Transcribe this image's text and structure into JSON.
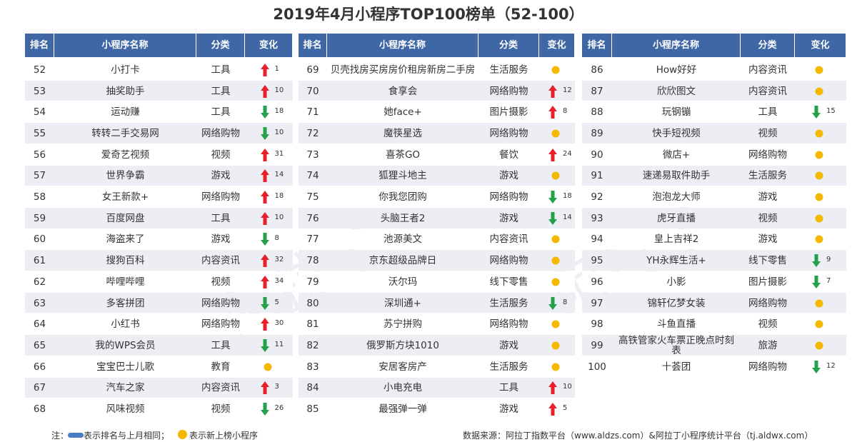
{
  "title": "2019年4月小程序TOP100榜单（52-100）",
  "headers": [
    "排名",
    "小程序名称",
    "分类",
    "变化"
  ],
  "watermark": "阿拉丁",
  "tables": [
    {
      "rows": [
        {
          "rank": 52,
          "name": "小打卡",
          "category": "工具",
          "trend": "up",
          "change": 1
        },
        {
          "rank": 53,
          "name": "抽奖助手",
          "category": "工具",
          "trend": "up",
          "change": 10
        },
        {
          "rank": 54,
          "name": "运动赚",
          "category": "工具",
          "trend": "down",
          "change": 18
        },
        {
          "rank": 55,
          "name": "转转二手交易网",
          "category": "网络购物",
          "trend": "down",
          "change": 10
        },
        {
          "rank": 56,
          "name": "爱奇艺视频",
          "category": "视频",
          "trend": "up",
          "change": 31
        },
        {
          "rank": 57,
          "name": "世界争霸",
          "category": "游戏",
          "trend": "up",
          "change": 14
        },
        {
          "rank": 58,
          "name": "女王新款+",
          "category": "网络购物",
          "trend": "up",
          "change": 18
        },
        {
          "rank": 59,
          "name": "百度网盘",
          "category": "工具",
          "trend": "up",
          "change": 10
        },
        {
          "rank": 60,
          "name": "海盗来了",
          "category": "游戏",
          "trend": "down",
          "change": 8
        },
        {
          "rank": 61,
          "name": "搜狗百科",
          "category": "内容资讯",
          "trend": "up",
          "change": 32
        },
        {
          "rank": 62,
          "name": "哔哩哔哩",
          "category": "视频",
          "trend": "up",
          "change": 34
        },
        {
          "rank": 63,
          "name": "多客拼团",
          "category": "网络购物",
          "trend": "down",
          "change": 5
        },
        {
          "rank": 64,
          "name": "小红书",
          "category": "网络购物",
          "trend": "up",
          "change": 30
        },
        {
          "rank": 65,
          "name": "我的WPS会员",
          "category": "工具",
          "trend": "down",
          "change": 11
        },
        {
          "rank": 66,
          "name": "宝宝巴士儿歌",
          "category": "教育",
          "trend": "new"
        },
        {
          "rank": 67,
          "name": "汽车之家",
          "category": "内容资讯",
          "trend": "up",
          "change": 3
        },
        {
          "rank": 68,
          "name": "风味视频",
          "category": "视频",
          "trend": "down",
          "change": 26
        }
      ]
    },
    {
      "rows": [
        {
          "rank": 69,
          "name": "贝壳找房买房房价租房新房二手房",
          "category": "生活服务",
          "trend": "new"
        },
        {
          "rank": 70,
          "name": "食享会",
          "category": "网络购物",
          "trend": "up",
          "change": 12
        },
        {
          "rank": 71,
          "name": "她face+",
          "category": "图片摄影",
          "trend": "up",
          "change": 8
        },
        {
          "rank": 72,
          "name": "魔筷星选",
          "category": "网络购物",
          "trend": "new"
        },
        {
          "rank": 73,
          "name": "喜茶GO",
          "category": "餐饮",
          "trend": "up",
          "change": 24
        },
        {
          "rank": 74,
          "name": "狐狸斗地主",
          "category": "游戏",
          "trend": "new"
        },
        {
          "rank": 75,
          "name": "你我您团购",
          "category": "网络购物",
          "trend": "down",
          "change": 18
        },
        {
          "rank": 76,
          "name": "头脑王者2",
          "category": "游戏",
          "trend": "down",
          "change": 14
        },
        {
          "rank": 77,
          "name": "池源美文",
          "category": "内容资讯",
          "trend": "new"
        },
        {
          "rank": 78,
          "name": "京东超级品牌日",
          "category": "网络购物",
          "trend": "new"
        },
        {
          "rank": 79,
          "name": "沃尔玛",
          "category": "线下零售",
          "trend": "new"
        },
        {
          "rank": 80,
          "name": "深圳通+",
          "category": "生活服务",
          "trend": "down",
          "change": 8
        },
        {
          "rank": 81,
          "name": "苏宁拼购",
          "category": "网络购物",
          "trend": "new"
        },
        {
          "rank": 82,
          "name": "俄罗斯方块1010",
          "category": "游戏",
          "trend": "new"
        },
        {
          "rank": 83,
          "name": "安居客房产",
          "category": "生活服务",
          "trend": "new"
        },
        {
          "rank": 84,
          "name": "小电充电",
          "category": "工具",
          "trend": "up",
          "change": 10
        },
        {
          "rank": 85,
          "name": "最强弹一弹",
          "category": "游戏",
          "trend": "up",
          "change": 5
        }
      ]
    },
    {
      "rows": [
        {
          "rank": 86,
          "name": "How好好",
          "category": "内容资讯",
          "trend": "new"
        },
        {
          "rank": 87,
          "name": "欣欣图文",
          "category": "内容资讯",
          "trend": "new"
        },
        {
          "rank": 88,
          "name": "玩钢镚",
          "category": "工具",
          "trend": "down",
          "change": 15
        },
        {
          "rank": 89,
          "name": "快手短视频",
          "category": "视频",
          "trend": "new"
        },
        {
          "rank": 90,
          "name": "微店+",
          "category": "网络购物",
          "trend": "new"
        },
        {
          "rank": 91,
          "name": "速递易取件助手",
          "category": "生活服务",
          "trend": "new"
        },
        {
          "rank": 92,
          "name": "泡泡龙大师",
          "category": "游戏",
          "trend": "new"
        },
        {
          "rank": 93,
          "name": "虎牙直播",
          "category": "视频",
          "trend": "new"
        },
        {
          "rank": 94,
          "name": "皇上吉祥2",
          "category": "游戏",
          "trend": "new"
        },
        {
          "rank": 95,
          "name": "YH永辉生活+",
          "category": "线下零售",
          "trend": "down",
          "change": 9
        },
        {
          "rank": 96,
          "name": "小影",
          "category": "图片摄影",
          "trend": "down",
          "change": 7
        },
        {
          "rank": 97,
          "name": "锦轩亿梦女装",
          "category": "网络购物",
          "trend": "new"
        },
        {
          "rank": 98,
          "name": "斗鱼直播",
          "category": "视频",
          "trend": "new"
        },
        {
          "rank": 99,
          "name": "高铁管家火车票正晚点时刻表",
          "category": "旅游",
          "trend": "new"
        },
        {
          "rank": 100,
          "name": "十荟团",
          "category": "网络购物",
          "trend": "down",
          "change": 12
        }
      ]
    }
  ],
  "footer": {
    "note_prefix": "注：",
    "note_same": "表示排名与上月相同；",
    "note_new": "表示新上榜小程序",
    "source": "数据来源：阿拉丁指数平台（www.aldzs.com）&阿拉丁小程序统计平台（tj.aldwx.com）"
  }
}
